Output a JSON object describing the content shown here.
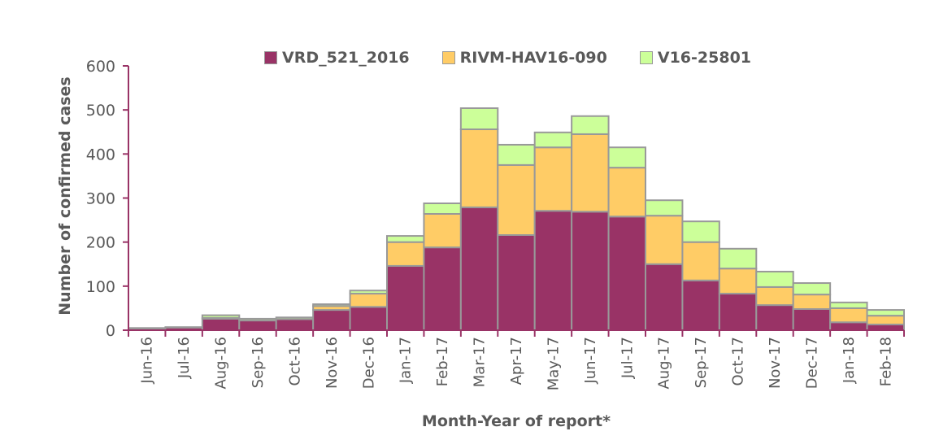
{
  "chart_data": {
    "type": "bar",
    "stacked": true,
    "title": "",
    "xlabel": "Month-Year of report*",
    "ylabel": "Number of confirmed cases",
    "ylim": [
      0,
      600
    ],
    "yticks": [
      0,
      100,
      200,
      300,
      400,
      500,
      600
    ],
    "grid": false,
    "legend_position": "top",
    "categories": [
      "Jun-16",
      "Jul-16",
      "Aug-16",
      "Sep-16",
      "Oct-16",
      "Nov-16",
      "Dec-16",
      "Jan-17",
      "Feb-17",
      "Mar-17",
      "Apr-17",
      "May-17",
      "Jun-17",
      "Jul-17",
      "Aug-17",
      "Sep-17",
      "Oct-17",
      "Nov-17",
      "Dec-17",
      "Jan-18",
      "Feb-18"
    ],
    "series": [
      {
        "name": "VRD_521_2016",
        "color": "#993366",
        "values": [
          4,
          6,
          26,
          22,
          25,
          46,
          53,
          146,
          188,
          279,
          216,
          271,
          269,
          258,
          150,
          113,
          83,
          57,
          48,
          18,
          13
        ]
      },
      {
        "name": "RIVM-HAV16-090",
        "color": "#FFCC66",
        "values": [
          0,
          0,
          2,
          0,
          0,
          9,
          30,
          54,
          76,
          177,
          159,
          144,
          176,
          111,
          110,
          87,
          57,
          41,
          33,
          32,
          20
        ]
      },
      {
        "name": "V16-25801",
        "color": "#CCFF99",
        "values": [
          1,
          1,
          6,
          4,
          4,
          4,
          7,
          14,
          24,
          48,
          46,
          34,
          41,
          46,
          35,
          47,
          45,
          35,
          26,
          13,
          13
        ]
      }
    ]
  }
}
